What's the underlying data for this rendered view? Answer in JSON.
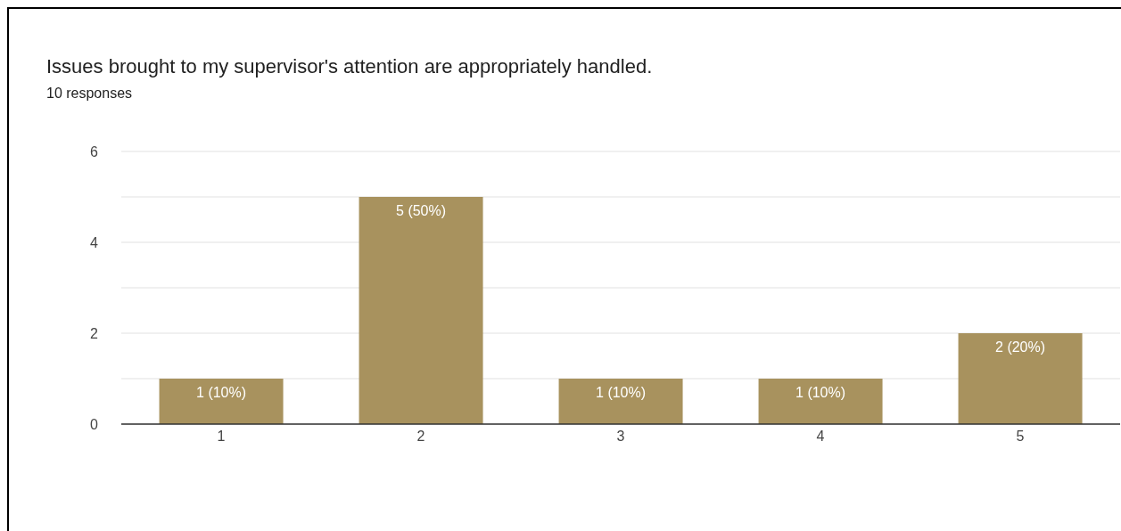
{
  "chart_data": {
    "type": "bar",
    "title": "Issues brought to my supervisor's attention are appropriately handled.",
    "subtitle": "10 responses",
    "categories": [
      "1",
      "2",
      "3",
      "4",
      "5"
    ],
    "values": [
      1,
      5,
      1,
      1,
      2
    ],
    "value_labels": [
      "1 (10%)",
      "5 (50%)",
      "1 (10%)",
      "1 (10%)",
      "2 (20%)"
    ],
    "color": "#a8925e",
    "ylim": [
      0,
      6
    ],
    "yticks": [
      0,
      {
        "value": 1,
        "label": null
      },
      2,
      {
        "value": 3,
        "label": null
      },
      4,
      {
        "value": 5,
        "label": null
      },
      6
    ],
    "grid": "y",
    "legend": false
  }
}
